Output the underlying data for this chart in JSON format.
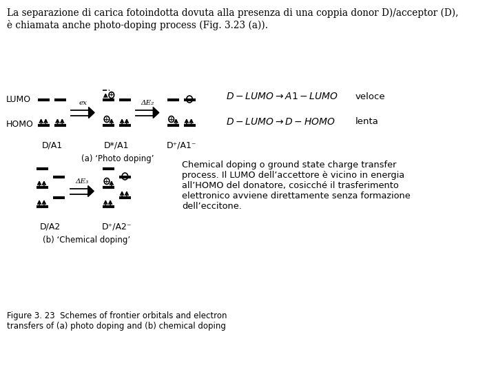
{
  "bg_color": "#ffffff",
  "title_text": "La separazione di carica fotoindotta dovuta alla presenza di una coppia donor D)/acceptor (D),\nè chiamata anche photo-doping process (Fig. 3.23 (a)).",
  "figure_caption": "Figure 3. 23  Schemes of frontier orbitals and electron\ntransfers of (a) photo doping and (b) chemical doping",
  "chemical_text": "Chemical doping o ground state charge transfer\nprocess. Il LUMO dell’accettore è vicino in energia\nall’HOMO del donatore, cosicché il trasferimento\nelettronico avviene direttamente senza formazione\ndell’eccitone.",
  "label_a": "(a) ‘Photo doping’",
  "label_b": "(b) ‘Chemical doping’"
}
